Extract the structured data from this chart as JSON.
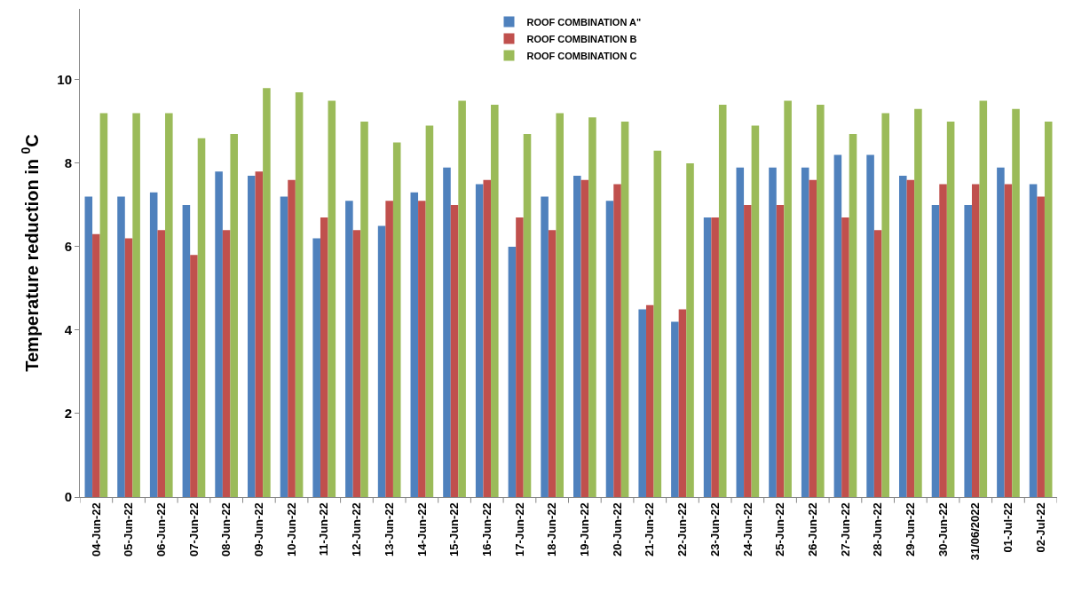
{
  "chart_data": {
    "type": "bar",
    "ylabel": "Temperature reduction in $^{0}$C",
    "categories": [
      "04-Jun-22",
      "05-Jun-22",
      "06-Jun-22",
      "07-Jun-22",
      "08-Jun-22",
      "09-Jun-22",
      "10-Jun-22",
      "11-Jun-22",
      "12-Jun-22",
      "13-Jun-22",
      "14-Jun-22",
      "15-Jun-22",
      "16-Jun-22",
      "17-Jun-22",
      "18-Jun-22",
      "19-Jun-22",
      "20-Jun-22",
      "21-Jun-22",
      "22-Jun-22",
      "23-Jun-22",
      "24-Jun-22",
      "25-Jun-22",
      "26-Jun-22",
      "27-Jun-22",
      "28-Jun-22",
      "29-Jun-22",
      "30-Jun-22",
      "31/06/2022",
      "01-Jul-22",
      "02-Jul-22"
    ],
    "series": [
      {
        "name": "ROOF COMBINATION A\"",
        "color": "#4f81bd",
        "values": [
          7.2,
          7.2,
          7.3,
          7.0,
          7.8,
          7.7,
          7.2,
          6.2,
          7.1,
          6.5,
          7.3,
          7.9,
          7.5,
          6.0,
          7.2,
          7.7,
          7.1,
          4.5,
          4.2,
          6.7,
          7.9,
          7.9,
          7.9,
          8.2,
          8.2,
          7.7,
          7.0,
          7.0,
          7.9,
          7.5
        ]
      },
      {
        "name": "ROOF COMBINATION B",
        "color": "#c0504d",
        "values": [
          6.3,
          6.2,
          6.4,
          5.8,
          6.4,
          7.8,
          7.6,
          6.7,
          6.4,
          7.1,
          7.1,
          7.0,
          7.6,
          6.7,
          6.4,
          7.6,
          7.5,
          4.6,
          4.5,
          6.7,
          7.0,
          7.0,
          7.6,
          6.7,
          6.4,
          7.6,
          7.5,
          7.5,
          7.5,
          7.2
        ]
      },
      {
        "name": "ROOF COMBINATION C",
        "color": "#9bbb59",
        "values": [
          9.2,
          9.2,
          9.2,
          8.6,
          8.7,
          9.8,
          9.7,
          9.5,
          9.0,
          8.5,
          8.9,
          9.5,
          9.4,
          8.7,
          9.2,
          9.1,
          9.0,
          8.3,
          8.0,
          9.4,
          8.9,
          9.5,
          9.4,
          8.7,
          9.2,
          9.3,
          9.0,
          9.5,
          9.3,
          9.0
        ]
      }
    ],
    "ylim": [
      0,
      11.7
    ],
    "yticks": [
      0,
      2,
      4,
      6,
      8,
      10
    ],
    "legend": "top"
  }
}
